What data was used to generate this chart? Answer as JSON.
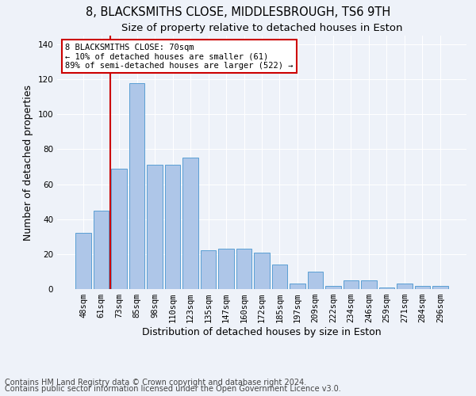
{
  "title": "8, BLACKSMITHS CLOSE, MIDDLESBROUGH, TS6 9TH",
  "subtitle": "Size of property relative to detached houses in Eston",
  "xlabel": "Distribution of detached houses by size in Eston",
  "ylabel": "Number of detached properties",
  "categories": [
    "48sqm",
    "61sqm",
    "73sqm",
    "85sqm",
    "98sqm",
    "110sqm",
    "123sqm",
    "135sqm",
    "147sqm",
    "160sqm",
    "172sqm",
    "185sqm",
    "197sqm",
    "209sqm",
    "222sqm",
    "234sqm",
    "246sqm",
    "259sqm",
    "271sqm",
    "284sqm",
    "296sqm"
  ],
  "values": [
    32,
    45,
    69,
    118,
    71,
    71,
    75,
    22,
    23,
    23,
    21,
    14,
    3,
    10,
    2,
    5,
    5,
    1,
    3,
    2,
    2
  ],
  "bar_color": "#aec6e8",
  "bar_edge_color": "#5a9fd4",
  "redline_index": 1.5,
  "ylim": [
    0,
    145
  ],
  "yticks": [
    0,
    20,
    40,
    60,
    80,
    100,
    120,
    140
  ],
  "annotation_text": "8 BLACKSMITHS CLOSE: 70sqm\n← 10% of detached houses are smaller (61)\n89% of semi-detached houses are larger (522) →",
  "annotation_box_color": "#ffffff",
  "annotation_box_edge": "#cc0000",
  "footer1": "Contains HM Land Registry data © Crown copyright and database right 2024.",
  "footer2": "Contains public sector information licensed under the Open Government Licence v3.0.",
  "background_color": "#eef2f9",
  "grid_color": "#ffffff",
  "title_fontsize": 10.5,
  "subtitle_fontsize": 9.5,
  "axis_label_fontsize": 9,
  "tick_fontsize": 7.5,
  "annotation_fontsize": 7.5,
  "footer_fontsize": 7
}
